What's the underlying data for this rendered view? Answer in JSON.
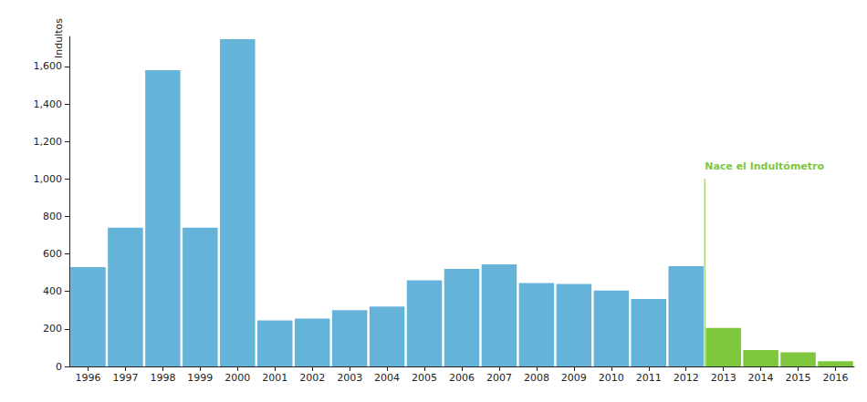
{
  "chart_data": {
    "type": "bar",
    "y_label": "Indultos",
    "categories": [
      "1996",
      "1997",
      "1998",
      "1999",
      "2000",
      "2001",
      "2002",
      "2003",
      "2004",
      "2005",
      "2006",
      "2007",
      "2008",
      "2009",
      "2010",
      "2011",
      "2012",
      "2013",
      "2014",
      "2015",
      "2016"
    ],
    "values": [
      530,
      740,
      1580,
      740,
      1745,
      245,
      255,
      300,
      320,
      460,
      520,
      545,
      445,
      440,
      405,
      360,
      535,
      205,
      88,
      75,
      28
    ],
    "colors": [
      "#66b3da",
      "#66b3da",
      "#66b3da",
      "#66b3da",
      "#66b3da",
      "#66b3da",
      "#66b3da",
      "#66b3da",
      "#66b3da",
      "#66b3da",
      "#66b3da",
      "#66b3da",
      "#66b3da",
      "#66b3da",
      "#66b3da",
      "#66b3da",
      "#66b3da",
      "#7dc63e",
      "#7dc63e",
      "#7dc63e",
      "#7dc63e"
    ],
    "ylim": [
      0,
      1760
    ],
    "yticks": [
      0,
      200,
      400,
      600,
      800,
      {
        "value": 1000,
        "label": "1,000"
      },
      {
        "value": 1200,
        "label": "1,200"
      },
      {
        "value": 1400,
        "label": "1,400"
      },
      {
        "value": 1600,
        "label": "1,600"
      }
    ],
    "grid": false,
    "data_labels": false,
    "annotations": [
      {
        "text": "Nace el Indultómetro",
        "between": [
          "2012",
          "2013"
        ],
        "y": 1000,
        "color": "#7dc63e"
      }
    ]
  }
}
